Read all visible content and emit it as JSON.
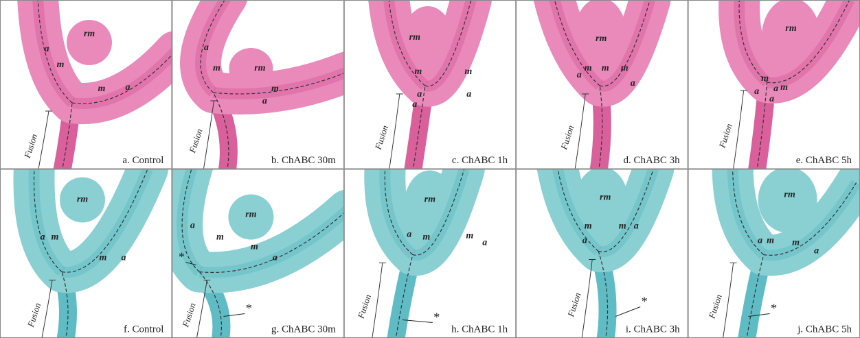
{
  "panels": [
    {
      "caption": "a. Control",
      "fusion": "Fusion",
      "labels": [
        "rm",
        "a",
        "m",
        "m",
        "a"
      ],
      "asterisks": []
    },
    {
      "caption": "b. ChABC 30m",
      "fusion": "Fusion",
      "labels": [
        "a",
        "m",
        "rm",
        "m",
        "a"
      ],
      "asterisks": []
    },
    {
      "caption": "c. ChABC 1h",
      "fusion": "Fusion",
      "labels": [
        "rm",
        "m",
        "m",
        "a",
        "a",
        "a"
      ],
      "asterisks": []
    },
    {
      "caption": "d. ChABC 3h",
      "fusion": "Fusion",
      "labels": [
        "rm",
        "m",
        "m",
        "m",
        "a",
        "a"
      ],
      "asterisks": []
    },
    {
      "caption": "e. ChABC 5h",
      "fusion": "Fusion",
      "labels": [
        "rm",
        "m",
        "m",
        "a",
        "a",
        "a"
      ],
      "asterisks": []
    },
    {
      "caption": "f. Control",
      "fusion": "Fusion",
      "labels": [
        "rm",
        "a",
        "m",
        "m",
        "a"
      ],
      "asterisks": []
    },
    {
      "caption": "g. ChABC 30m",
      "fusion": "Fusion",
      "labels": [
        "a",
        "rm",
        "m",
        "m",
        "a"
      ],
      "asterisks": [
        "*",
        "*"
      ]
    },
    {
      "caption": "h. ChABC 1h",
      "fusion": "Fusion",
      "labels": [
        "rm",
        "a",
        "m",
        "m",
        "a"
      ],
      "asterisks": [
        "*"
      ]
    },
    {
      "caption": "i. ChABC 3h",
      "fusion": "Fusion",
      "labels": [
        "rm",
        "m",
        "m",
        "a",
        "a"
      ],
      "asterisks": [
        "*"
      ]
    },
    {
      "caption": "j. ChABC 5h",
      "fusion": "Fusion",
      "labels": [
        "rm",
        "a",
        "m",
        "m",
        "a"
      ],
      "asterisks": [
        "*"
      ]
    }
  ]
}
